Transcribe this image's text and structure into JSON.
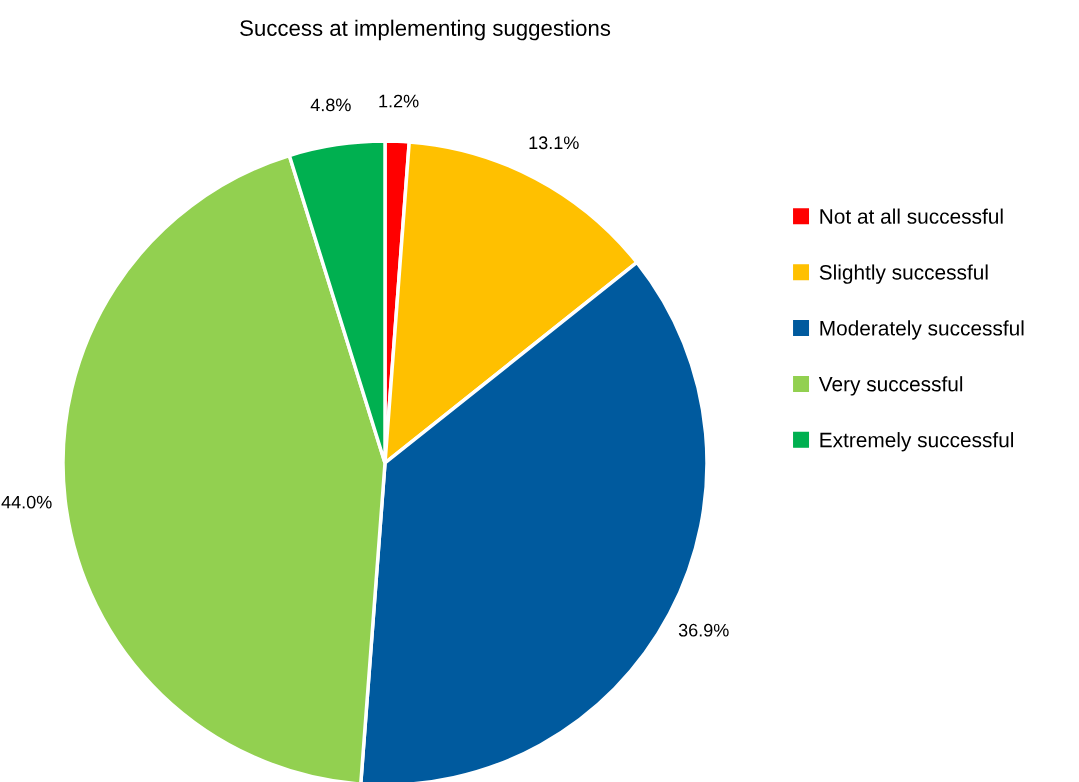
{
  "chart_data": {
    "type": "pie",
    "title": "Success at implementing suggestions",
    "categories": [
      "Not at all successful",
      "Slightly successful",
      "Moderately successful",
      "Very successful",
      "Extremely successful"
    ],
    "values": [
      1.2,
      13.1,
      36.9,
      44.0,
      4.8
    ],
    "colors": [
      "#ff0000",
      "#ffc000",
      "#005a9e",
      "#92d050",
      "#00b050"
    ],
    "value_labels": [
      "1.2%",
      "13.1%",
      "36.9%",
      "44.0%",
      "4.8%"
    ],
    "legend": "right"
  }
}
